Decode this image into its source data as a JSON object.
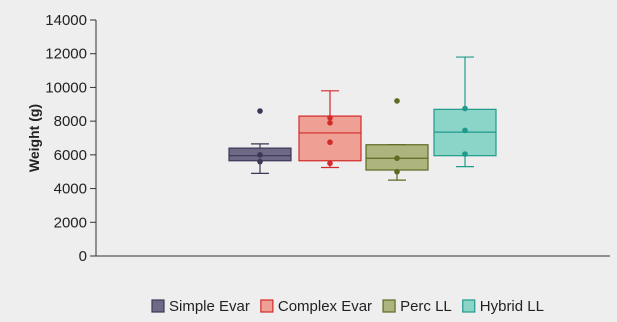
{
  "chart_data": {
    "type": "box",
    "title": "",
    "xlabel": "",
    "ylabel": "Weight (g)",
    "ylim": [
      0,
      14000
    ],
    "yticks": [
      0,
      2000,
      4000,
      6000,
      8000,
      10000,
      12000,
      14000
    ],
    "ytick_labels": [
      "0",
      "2000",
      "4000",
      "6000",
      "8000",
      "10000",
      "12000",
      "14000"
    ],
    "grid": false,
    "legend_position": "bottom",
    "series": [
      {
        "name": "Simple Evar",
        "color": "#6e6a86",
        "stroke": "#3b3756",
        "whisker_low": 4900,
        "q1": 5650,
        "median": 5950,
        "q3": 6400,
        "whisker_high": 6650,
        "points": [
          8600,
          6000,
          5600
        ]
      },
      {
        "name": "Complex Evar",
        "color": "#eda093",
        "stroke": "#d42a2a",
        "whisker_low": 5250,
        "q1": 5650,
        "median": 7300,
        "q3": 8300,
        "whisker_high": 9800,
        "points": [
          8200,
          7900,
          6750,
          5500
        ]
      },
      {
        "name": "Perc LL",
        "color": "#aeb47e",
        "stroke": "#5f6a22",
        "whisker_low": 4500,
        "q1": 5100,
        "median": 5800,
        "q3": 6600,
        "whisker_high": 6600,
        "points": [
          9200,
          5800,
          5000
        ]
      },
      {
        "name": "Hybrid LL",
        "color": "#8ad4c8",
        "stroke": "#1f9a8a",
        "whisker_low": 5300,
        "q1": 5950,
        "median": 7350,
        "q3": 8700,
        "whisker_high": 11800,
        "points": [
          8750,
          7450,
          6050
        ]
      }
    ]
  }
}
